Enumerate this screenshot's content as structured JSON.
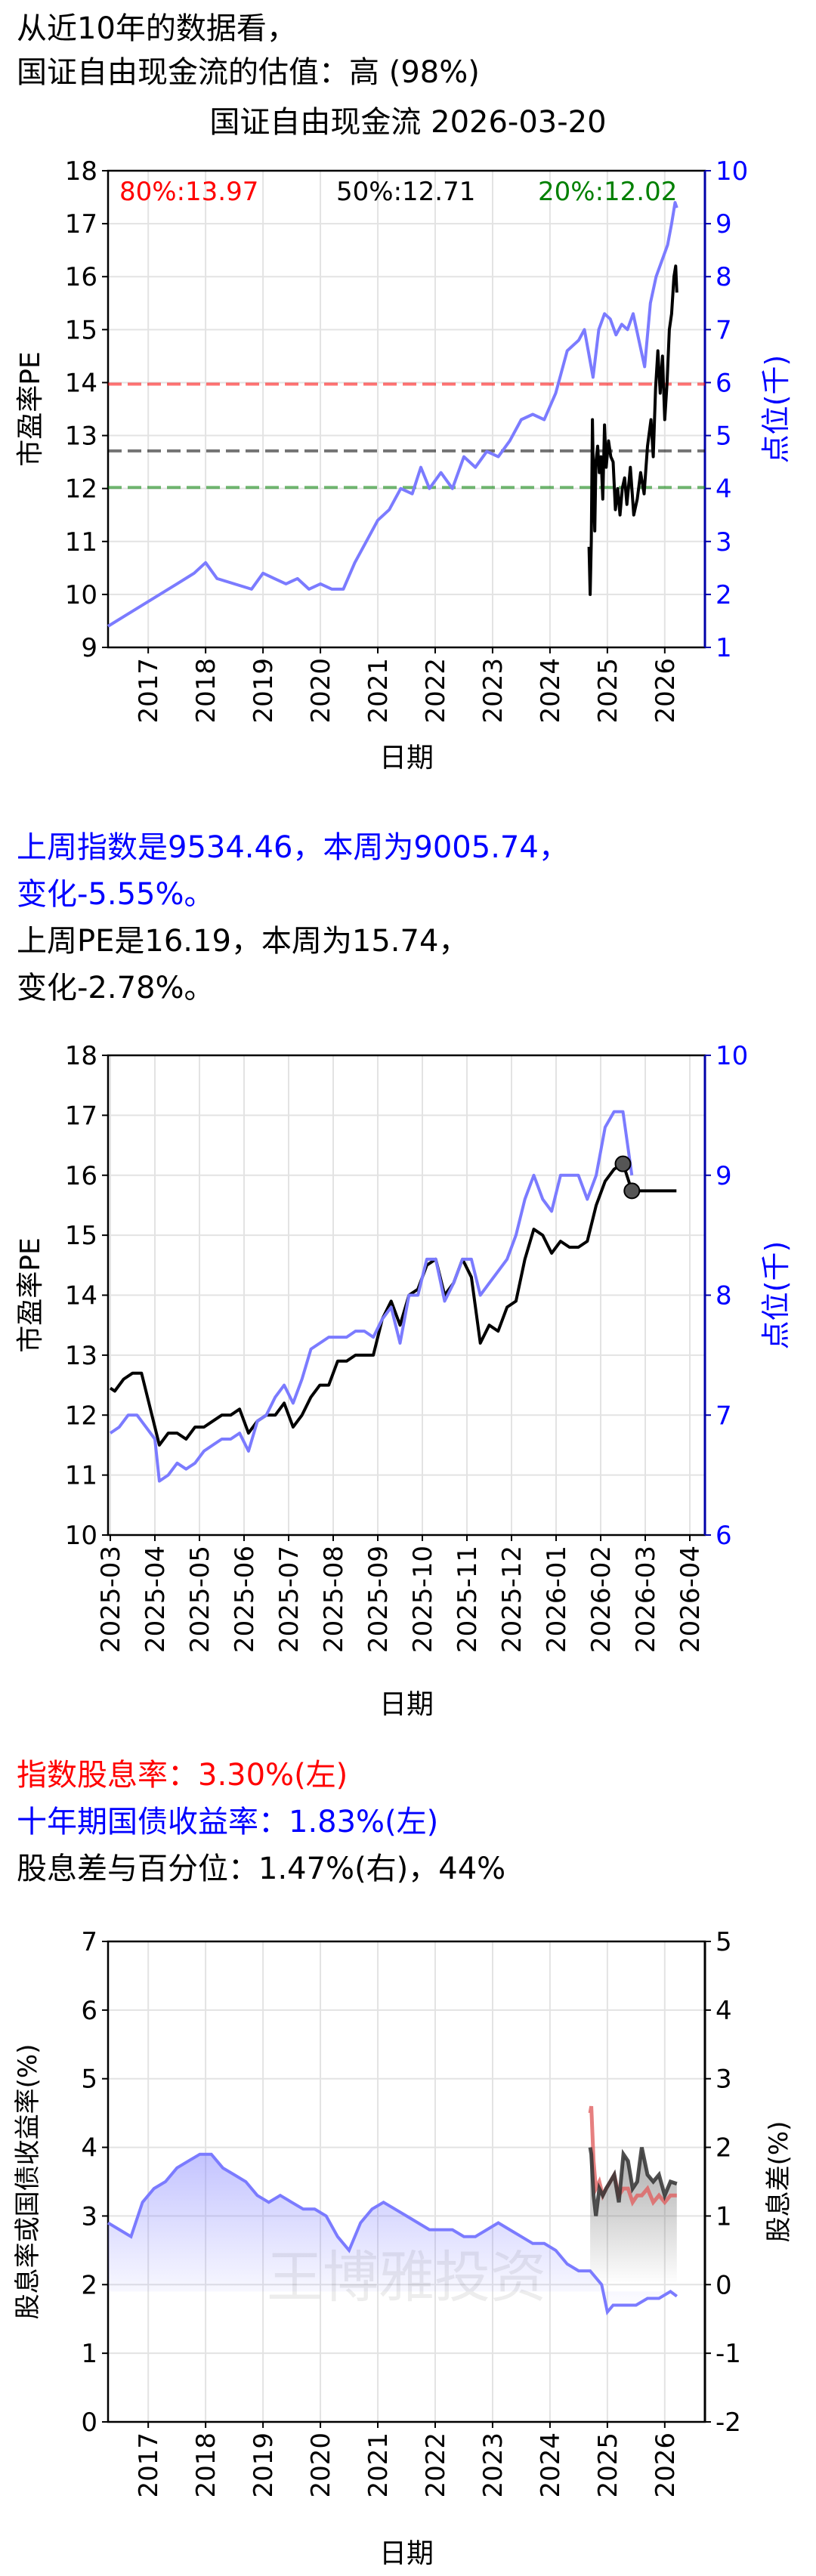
{
  "header": {
    "line1": "从近10年的数据看，",
    "line2": "国证自由现金流的估值：高 (98%)",
    "chart_title": "国证自由现金流 2026-03-20"
  },
  "weekly": {
    "index_line1": "上周指数是9534.46，本周为9005.74，",
    "index_line2": "变化-5.55%。",
    "pe_line1": "上周PE是16.19，本周为15.74，",
    "pe_line2": "变化-2.78%。"
  },
  "dividend": {
    "line1": "指数股息率：3.30%(左)",
    "line2": "十年期国债收益率：1.83%(左)",
    "line3": "股息差与百分位：1.47%(右)，44%"
  },
  "colors": {
    "pe": "#000000",
    "index": "#7b7bff",
    "dividend": "#e06060",
    "p80": "#ff0000",
    "p50": "#000000",
    "p20": "#008000",
    "axis_right": "#0000aa"
  },
  "chart_data": [
    {
      "type": "line",
      "title": "国证自由现金流 2026-03-20",
      "xlabel": "日期",
      "ylabel": "市盈率PE",
      "y2label": "点位(千)",
      "xlim": [
        2016.3,
        2026.7
      ],
      "ylim": [
        9,
        18
      ],
      "y2lim": [
        1,
        10
      ],
      "x_ticks": [
        "2017",
        "2018",
        "2019",
        "2020",
        "2021",
        "2022",
        "2023",
        "2024",
        "2025",
        "2026"
      ],
      "y_ticks": [
        9,
        10,
        11,
        12,
        13,
        14,
        15,
        16,
        17,
        18
      ],
      "y2_ticks": [
        1,
        2,
        3,
        4,
        5,
        6,
        7,
        8,
        9,
        10
      ],
      "grid": true,
      "annotations": [
        "80%:13.97",
        "50%:12.71",
        "20%:12.02"
      ],
      "hlines": [
        {
          "label": "80%",
          "value": 13.97,
          "color": "#ff0000"
        },
        {
          "label": "50%",
          "value": 12.71,
          "color": "#000000"
        },
        {
          "label": "20%",
          "value": 12.02,
          "color": "#008000"
        }
      ],
      "series": [
        {
          "axis": "left",
          "color": "#000000",
          "x": [
            2024.68,
            2024.7,
            2024.72,
            2024.74,
            2024.76,
            2024.78,
            2024.8,
            2024.83,
            2024.86,
            2024.89,
            2024.92,
            2024.95,
            2024.98,
            2025.02,
            2025.06,
            2025.1,
            2025.14,
            2025.18,
            2025.22,
            2025.26,
            2025.3,
            2025.34,
            2025.4,
            2025.46,
            2025.52,
            2025.58,
            2025.64,
            2025.7,
            2025.76,
            2025.8,
            2025.84,
            2025.88,
            2025.92,
            2025.96,
            2026.0,
            2026.04,
            2026.08,
            2026.12,
            2026.16,
            2026.19,
            2026.21
          ],
          "y": [
            10.9,
            10.0,
            11.0,
            13.3,
            12.0,
            11.2,
            12.5,
            12.8,
            12.3,
            12.6,
            11.8,
            13.2,
            12.4,
            12.9,
            12.6,
            12.5,
            11.6,
            12.0,
            11.5,
            12.0,
            12.2,
            11.7,
            12.4,
            11.5,
            11.8,
            12.3,
            11.9,
            12.8,
            13.3,
            12.6,
            13.9,
            14.6,
            13.8,
            14.5,
            13.3,
            14.0,
            15.0,
            15.3,
            16.0,
            16.2,
            15.7
          ]
        },
        {
          "axis": "right",
          "color": "#7b7bff",
          "x": [
            2016.3,
            2016.6,
            2016.9,
            2017.2,
            2017.5,
            2017.8,
            2018.0,
            2018.2,
            2018.5,
            2018.8,
            2019.0,
            2019.2,
            2019.4,
            2019.6,
            2019.8,
            2020.0,
            2020.2,
            2020.4,
            2020.6,
            2020.8,
            2021.0,
            2021.2,
            2021.4,
            2021.6,
            2021.75,
            2021.9,
            2022.1,
            2022.3,
            2022.5,
            2022.7,
            2022.9,
            2023.1,
            2023.3,
            2023.5,
            2023.7,
            2023.9,
            2024.1,
            2024.3,
            2024.5,
            2024.6,
            2024.7,
            2024.75,
            2024.85,
            2024.95,
            2025.05,
            2025.15,
            2025.25,
            2025.35,
            2025.45,
            2025.55,
            2025.65,
            2025.75,
            2025.85,
            2025.95,
            2026.05,
            2026.12,
            2026.18,
            2026.21
          ],
          "y": [
            1.4,
            1.6,
            1.8,
            2.0,
            2.2,
            2.4,
            2.6,
            2.3,
            2.2,
            2.1,
            2.4,
            2.3,
            2.2,
            2.3,
            2.1,
            2.2,
            2.1,
            2.1,
            2.6,
            3.0,
            3.4,
            3.6,
            4.0,
            3.9,
            4.4,
            4.0,
            4.3,
            4.0,
            4.6,
            4.4,
            4.7,
            4.6,
            4.9,
            5.3,
            5.4,
            5.3,
            5.8,
            6.6,
            6.8,
            7.0,
            6.4,
            6.1,
            7.0,
            7.3,
            7.2,
            6.9,
            7.1,
            7.0,
            7.3,
            6.8,
            6.3,
            7.5,
            8.0,
            8.3,
            8.6,
            9.0,
            9.4,
            9.3
          ]
        }
      ]
    },
    {
      "type": "line",
      "xlabel": "日期",
      "ylabel": "市盈率PE",
      "y2label": "点位(千)",
      "ylim": [
        10,
        18
      ],
      "y2lim": [
        6,
        10
      ],
      "x_ticks": [
        "2025-03",
        "2025-04",
        "2025-05",
        "2025-06",
        "2025-07",
        "2025-08",
        "2025-09",
        "2025-10",
        "2025-11",
        "2025-12",
        "2026-01",
        "2026-02",
        "2026-03",
        "2026-04"
      ],
      "y_ticks": [
        10,
        11,
        12,
        13,
        14,
        15,
        16,
        17,
        18
      ],
      "y2_ticks": [
        6,
        7,
        8,
        9,
        10
      ],
      "grid": true,
      "series": [
        {
          "axis": "left",
          "color": "#000000",
          "x": [
            0.0,
            0.1,
            0.3,
            0.5,
            0.7,
            0.9,
            1.1,
            1.3,
            1.5,
            1.7,
            1.9,
            2.1,
            2.3,
            2.5,
            2.7,
            2.9,
            3.1,
            3.3,
            3.5,
            3.7,
            3.9,
            4.1,
            4.3,
            4.5,
            4.7,
            4.9,
            5.1,
            5.3,
            5.5,
            5.7,
            5.9,
            6.1,
            6.3,
            6.5,
            6.7,
            6.9,
            7.1,
            7.3,
            7.5,
            7.7,
            7.9,
            8.1,
            8.3,
            8.5,
            8.7,
            8.9,
            9.1,
            9.3,
            9.5,
            9.7,
            9.9,
            10.1,
            10.3,
            10.5,
            10.7,
            10.9,
            11.1,
            11.3,
            11.5,
            11.7,
            11.9,
            12.1,
            12.3,
            12.5,
            12.7
          ],
          "y": [
            12.45,
            12.4,
            12.6,
            12.7,
            12.7,
            12.1,
            11.5,
            11.7,
            11.7,
            11.6,
            11.8,
            11.8,
            11.9,
            12.0,
            12.0,
            12.1,
            11.7,
            11.9,
            12.0,
            12.0,
            12.2,
            11.8,
            12.0,
            12.3,
            12.5,
            12.5,
            12.9,
            12.9,
            13.0,
            13.0,
            13.0,
            13.6,
            13.9,
            13.5,
            14.0,
            14.1,
            14.5,
            14.6,
            14.0,
            14.2,
            14.6,
            14.3,
            13.2,
            13.5,
            13.4,
            13.8,
            13.9,
            14.6,
            15.1,
            15.0,
            14.7,
            14.9,
            14.8,
            14.8,
            14.9,
            15.5,
            15.9,
            16.1,
            16.2,
            15.74,
            15.74,
            15.74,
            15.74,
            15.74,
            15.74
          ]
        },
        {
          "axis": "right",
          "color": "#7b7bff",
          "x": [
            0.0,
            0.2,
            0.4,
            0.6,
            0.8,
            1.0,
            1.1,
            1.3,
            1.5,
            1.7,
            1.9,
            2.1,
            2.3,
            2.5,
            2.7,
            2.9,
            3.1,
            3.3,
            3.5,
            3.7,
            3.9,
            4.1,
            4.3,
            4.5,
            4.7,
            4.9,
            5.1,
            5.3,
            5.5,
            5.7,
            5.9,
            6.1,
            6.3,
            6.5,
            6.7,
            6.9,
            7.1,
            7.3,
            7.5,
            7.7,
            7.9,
            8.1,
            8.3,
            8.5,
            8.7,
            8.9,
            9.1,
            9.3,
            9.5,
            9.7,
            9.9,
            10.1,
            10.3,
            10.5,
            10.7,
            10.9,
            11.1,
            11.3,
            11.5,
            11.7
          ],
          "y": [
            6.85,
            6.9,
            7.0,
            7.0,
            6.9,
            6.8,
            6.45,
            6.5,
            6.6,
            6.55,
            6.6,
            6.7,
            6.75,
            6.8,
            6.8,
            6.85,
            6.7,
            6.95,
            7.0,
            7.15,
            7.25,
            7.1,
            7.3,
            7.55,
            7.6,
            7.65,
            7.65,
            7.65,
            7.7,
            7.7,
            7.65,
            7.8,
            7.9,
            7.6,
            8.0,
            8.0,
            8.3,
            8.3,
            7.95,
            8.1,
            8.3,
            8.3,
            8.0,
            8.1,
            8.2,
            8.3,
            8.5,
            8.8,
            9.0,
            8.8,
            8.7,
            9.0,
            9.0,
            9.0,
            8.8,
            9.0,
            9.4,
            9.53,
            9.53,
            9.0
          ]
        }
      ],
      "highlight_points": [
        {
          "x": 11.5,
          "y": 16.19
        },
        {
          "x": 11.7,
          "y": 15.74
        }
      ]
    },
    {
      "type": "area",
      "xlabel": "日期",
      "ylabel": "股息率或国债收益率(%)",
      "y2label": "股息差(%)",
      "xlim": [
        2016.3,
        2026.7
      ],
      "ylim": [
        0,
        7
      ],
      "y2lim": [
        -2,
        5
      ],
      "x_ticks": [
        "2017",
        "2018",
        "2019",
        "2020",
        "2021",
        "2022",
        "2023",
        "2024",
        "2025",
        "2026"
      ],
      "y_ticks": [
        0,
        1,
        2,
        3,
        4,
        5,
        6,
        7
      ],
      "y2_ticks": [
        -2,
        -1,
        0,
        1,
        2,
        3,
        4,
        5
      ],
      "grid": true,
      "watermark": "王博雅投资",
      "series": [
        {
          "axis": "left",
          "color": "#7b7bff",
          "x": [
            2016.3,
            2016.5,
            2016.7,
            2016.9,
            2017.1,
            2017.3,
            2017.5,
            2017.7,
            2017.9,
            2018.1,
            2018.3,
            2018.5,
            2018.7,
            2018.9,
            2019.1,
            2019.3,
            2019.5,
            2019.7,
            2019.9,
            2020.1,
            2020.3,
            2020.5,
            2020.7,
            2020.9,
            2021.1,
            2021.3,
            2021.5,
            2021.7,
            2021.9,
            2022.1,
            2022.3,
            2022.5,
            2022.7,
            2022.9,
            2023.1,
            2023.3,
            2023.5,
            2023.7,
            2023.9,
            2024.1,
            2024.3,
            2024.5,
            2024.7,
            2024.9,
            2025.0,
            2025.1,
            2025.3,
            2025.5,
            2025.7,
            2025.9,
            2026.1,
            2026.21
          ],
          "y": [
            2.9,
            2.8,
            2.7,
            3.2,
            3.4,
            3.5,
            3.7,
            3.8,
            3.9,
            3.9,
            3.7,
            3.6,
            3.5,
            3.3,
            3.2,
            3.3,
            3.2,
            3.1,
            3.1,
            3.0,
            2.7,
            2.5,
            2.9,
            3.1,
            3.2,
            3.1,
            3.0,
            2.9,
            2.8,
            2.8,
            2.8,
            2.7,
            2.7,
            2.8,
            2.9,
            2.8,
            2.7,
            2.6,
            2.6,
            2.5,
            2.3,
            2.2,
            2.2,
            2.0,
            1.6,
            1.7,
            1.7,
            1.7,
            1.8,
            1.8,
            1.9,
            1.83
          ]
        },
        {
          "axis": "left",
          "color": "#e06060",
          "x": [
            2024.7,
            2024.72,
            2024.76,
            2024.8,
            2024.86,
            2024.92,
            2024.98,
            2025.05,
            2025.12,
            2025.2,
            2025.28,
            2025.36,
            2025.44,
            2025.52,
            2025.6,
            2025.7,
            2025.8,
            2025.9,
            2026.0,
            2026.1,
            2026.21
          ],
          "y": [
            4.5,
            4.6,
            3.8,
            3.4,
            3.5,
            3.3,
            3.4,
            3.5,
            3.6,
            3.3,
            3.4,
            3.4,
            3.2,
            3.3,
            3.3,
            3.4,
            3.2,
            3.3,
            3.2,
            3.3,
            3.3
          ]
        },
        {
          "axis": "right",
          "color": "#303030",
          "x": [
            2024.7,
            2024.72,
            2024.76,
            2024.8,
            2024.86,
            2024.92,
            2024.98,
            2025.05,
            2025.12,
            2025.2,
            2025.28,
            2025.36,
            2025.44,
            2025.52,
            2025.6,
            2025.7,
            2025.8,
            2025.9,
            2026.0,
            2026.1,
            2026.21
          ],
          "y": [
            2.0,
            1.9,
            1.3,
            1.0,
            1.4,
            1.3,
            1.4,
            1.5,
            1.6,
            1.2,
            1.9,
            1.8,
            1.4,
            1.5,
            2.0,
            1.6,
            1.5,
            1.6,
            1.3,
            1.5,
            1.47
          ]
        }
      ]
    }
  ]
}
